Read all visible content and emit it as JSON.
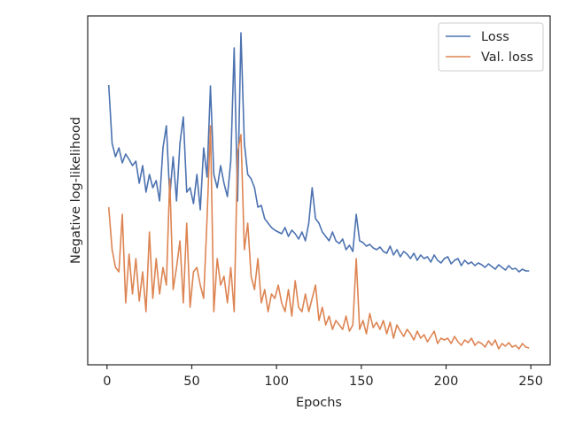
{
  "chart_data": {
    "type": "line",
    "xlabel": "Epochs",
    "ylabel": "Negative log-likelihood",
    "xlim": [
      -11.4,
      261.4
    ],
    "xticks": [
      0,
      50,
      100,
      150,
      200,
      250
    ],
    "ylim": [
      0,
      394
    ],
    "legend": "upper right",
    "x": [
      1,
      3,
      5,
      7,
      9,
      11,
      13,
      15,
      17,
      19,
      21,
      23,
      25,
      27,
      29,
      31,
      33,
      35,
      37,
      39,
      41,
      43,
      45,
      47,
      49,
      51,
      53,
      55,
      57,
      59,
      61,
      63,
      65,
      67,
      69,
      71,
      73,
      75,
      77,
      79,
      81,
      83,
      85,
      87,
      89,
      91,
      93,
      95,
      97,
      99,
      101,
      103,
      105,
      107,
      109,
      111,
      113,
      115,
      117,
      119,
      121,
      123,
      125,
      127,
      129,
      131,
      133,
      135,
      137,
      139,
      141,
      143,
      145,
      147,
      149,
      151,
      153,
      155,
      157,
      159,
      161,
      163,
      165,
      167,
      169,
      171,
      173,
      175,
      177,
      179,
      181,
      183,
      185,
      187,
      189,
      191,
      193,
      195,
      197,
      199,
      201,
      203,
      205,
      207,
      209,
      211,
      213,
      215,
      217,
      219,
      221,
      223,
      225,
      227,
      229,
      231,
      233,
      235,
      237,
      239,
      241,
      243,
      245,
      247,
      249
    ],
    "series": [
      {
        "name": "Loss",
        "color": "#4c72b0",
        "values": [
          316,
          250,
          235,
          245,
          228,
          238,
          232,
          225,
          230,
          205,
          225,
          195,
          215,
          200,
          208,
          185,
          245,
          270,
          190,
          235,
          185,
          250,
          280,
          195,
          200,
          182,
          215,
          175,
          245,
          212,
          315,
          215,
          200,
          225,
          205,
          190,
          230,
          358,
          185,
          375,
          250,
          215,
          210,
          200,
          178,
          180,
          165,
          160,
          155,
          152,
          150,
          148,
          155,
          145,
          152,
          148,
          142,
          150,
          140,
          160,
          200,
          165,
          160,
          150,
          145,
          140,
          150,
          140,
          137,
          142,
          130,
          135,
          128,
          170,
          140,
          138,
          134,
          136,
          132,
          130,
          133,
          128,
          126,
          134,
          124,
          130,
          122,
          128,
          125,
          120,
          126,
          118,
          124,
          120,
          122,
          116,
          124,
          118,
          115,
          120,
          122,
          114,
          118,
          120,
          112,
          118,
          114,
          116,
          112,
          115,
          113,
          110,
          114,
          111,
          108,
          113,
          110,
          107,
          112,
          108,
          109,
          105,
          108,
          106,
          106
        ]
      },
      {
        "name": "Val. loss",
        "color": "#dd8452",
        "values": [
          178,
          130,
          110,
          105,
          170,
          70,
          125,
          80,
          120,
          72,
          105,
          60,
          150,
          75,
          120,
          80,
          110,
          90,
          210,
          85,
          110,
          140,
          70,
          160,
          65,
          105,
          110,
          90,
          75,
          165,
          270,
          60,
          120,
          90,
          100,
          70,
          110,
          60,
          240,
          260,
          130,
          160,
          100,
          85,
          120,
          70,
          85,
          60,
          80,
          75,
          90,
          70,
          60,
          85,
          55,
          95,
          65,
          60,
          80,
          60,
          75,
          90,
          50,
          65,
          45,
          55,
          40,
          50,
          45,
          40,
          55,
          38,
          45,
          120,
          40,
          50,
          35,
          58,
          42,
          48,
          40,
          50,
          35,
          48,
          30,
          45,
          38,
          32,
          40,
          35,
          28,
          38,
          30,
          34,
          26,
          32,
          38,
          24,
          30,
          28,
          30,
          24,
          32,
          26,
          22,
          28,
          25,
          30,
          22,
          26,
          24,
          20,
          27,
          22,
          28,
          18,
          24,
          21,
          25,
          20,
          22,
          18,
          24,
          20,
          19
        ]
      }
    ]
  }
}
